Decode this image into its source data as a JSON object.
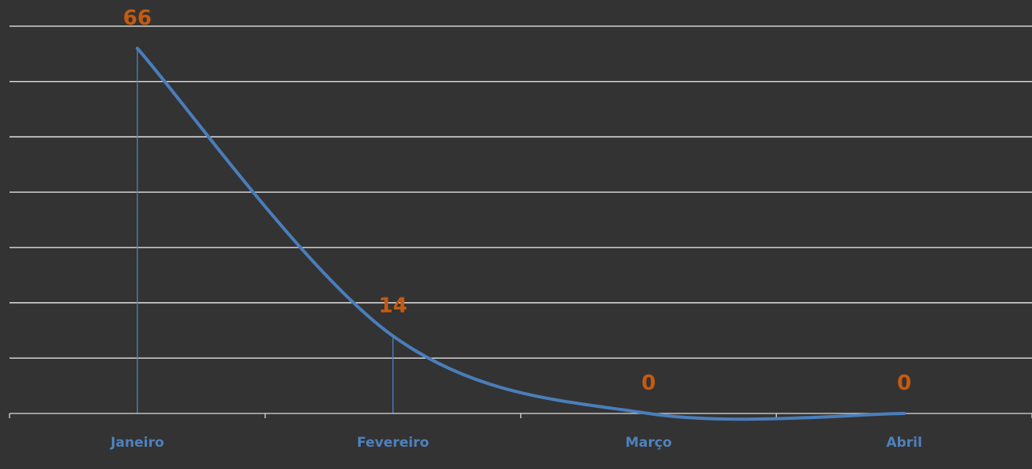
{
  "chart_data": {
    "type": "line",
    "smooth": true,
    "categories": [
      "Janeiro",
      "Fevereiro",
      "Março",
      "Abril"
    ],
    "series": [
      {
        "values": [
          66,
          14,
          0,
          0
        ]
      }
    ],
    "data_labels": [
      "66",
      "14",
      "0",
      "0"
    ],
    "title": "",
    "xlabel": "",
    "ylabel": "",
    "ylim": [
      0,
      70
    ],
    "y_major_unit": 10,
    "y_tick_labels_visible": false,
    "grid": true,
    "drop_lines": true,
    "legend": "none",
    "colors": {
      "background": "#333333",
      "line": "#4A7EBB",
      "data_label": "#C55A11",
      "category_label": "#4F81BD",
      "grid": "#F2F2F2"
    }
  }
}
